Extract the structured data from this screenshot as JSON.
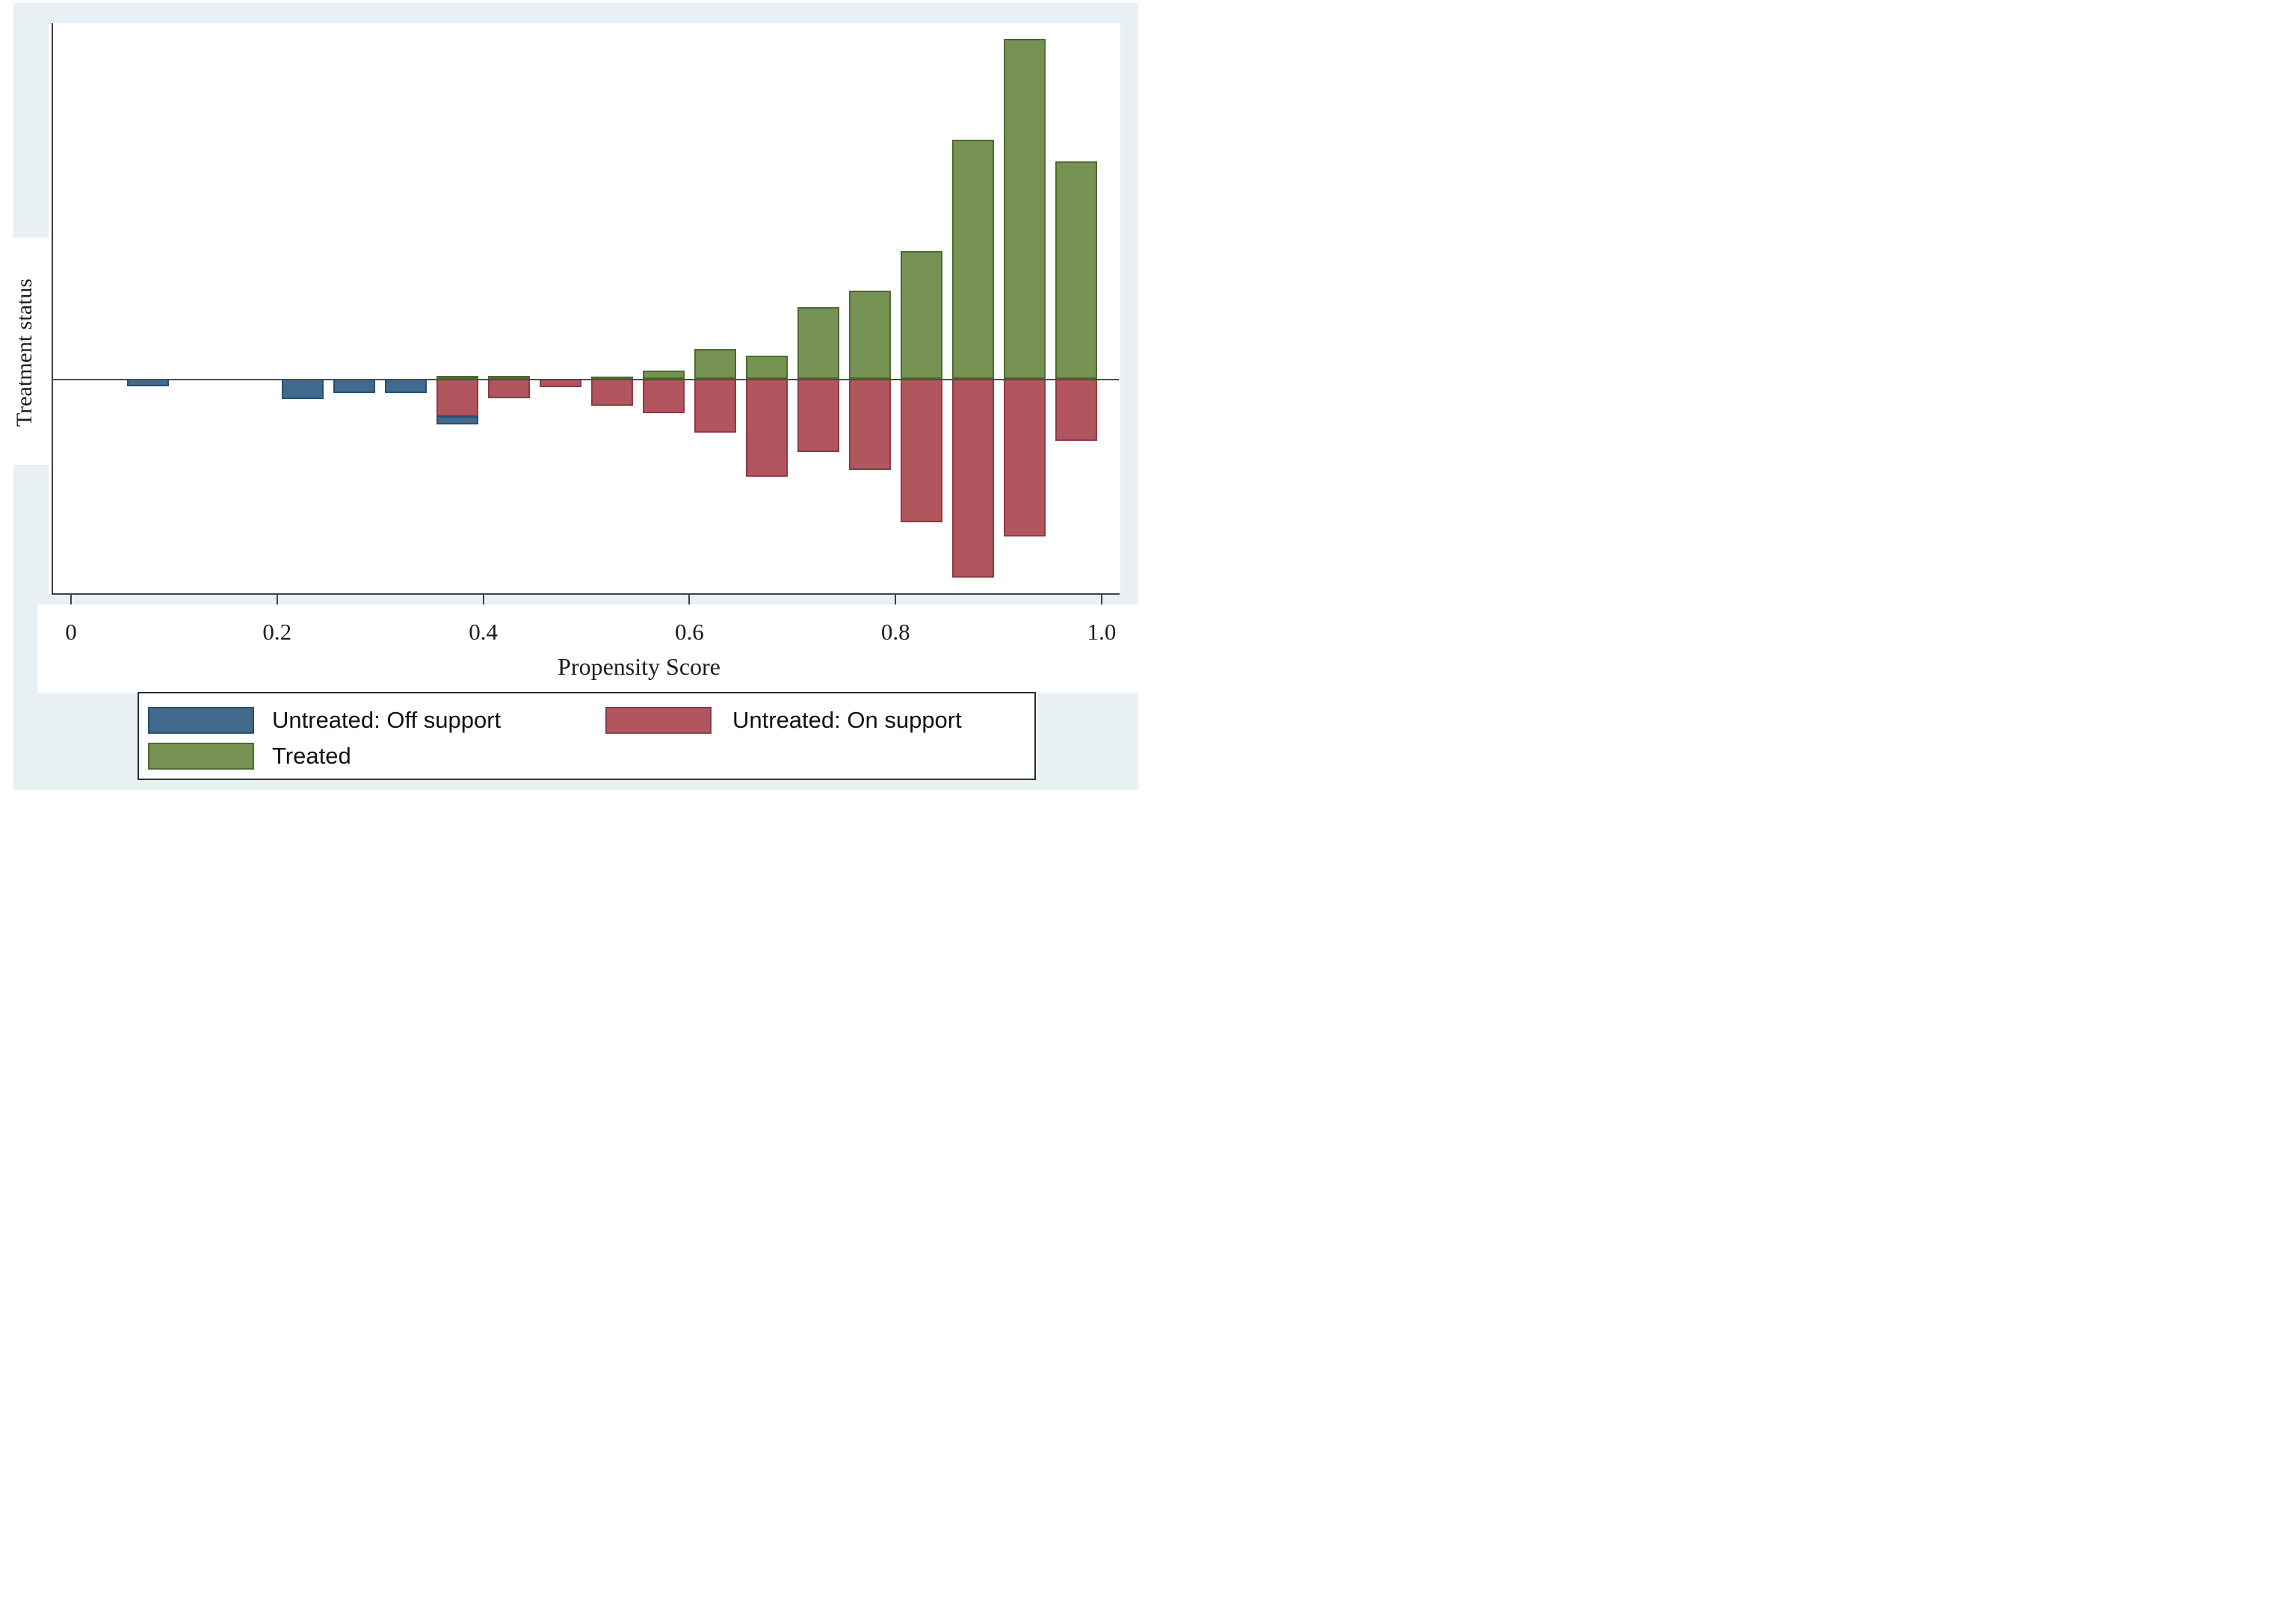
{
  "figure": {
    "colors": {
      "background_frame": "#e9f0f3",
      "plot_background": "#ffffff",
      "treated_fill": "#769253",
      "treated_edge": "#4e6a2f",
      "untreated_on_fill": "#b1555e",
      "untreated_on_edge": "#8e3a44",
      "untreated_off_fill": "#406a8e",
      "untreated_off_edge": "#294f6e",
      "axis_line": "#3f4245"
    }
  },
  "y_axis": {
    "title": "Treatment status"
  },
  "x_axis": {
    "title": "Propensity Score",
    "ticks": [
      {
        "label": "0",
        "value": 0.0
      },
      {
        "label": "0.2",
        "value": 0.2
      },
      {
        "label": "0.4",
        "value": 0.4
      },
      {
        "label": "0.6",
        "value": 0.6
      },
      {
        "label": "0.8",
        "value": 0.8
      },
      {
        "label": "1.0",
        "value": 1.0
      }
    ]
  },
  "legend": {
    "items": [
      {
        "label": "Untreated: Off support",
        "color_key": "untreated_off_fill",
        "edge_key": "untreated_off_edge"
      },
      {
        "label": "Untreated: On support",
        "color_key": "untreated_on_fill",
        "edge_key": "untreated_on_edge"
      },
      {
        "label": "Treated",
        "color_key": "treated_fill",
        "edge_key": "treated_edge"
      }
    ]
  },
  "chart_data": {
    "type": "bar",
    "subtype": "mirrored-histogram",
    "title": "",
    "xlabel": "Propensity Score",
    "ylabel": "Treatment status",
    "x_range": [
      0,
      1.0
    ],
    "bin_width": 0.05,
    "grid": false,
    "legend_position": "bottom",
    "units_note": "No numeric y scale shown; values are relative frequencies normalized so the tallest Treated bar = 1. Treated bars extend up from the zero line; Untreated bars extend down.",
    "series_names": [
      "Treated",
      "Untreated: On support",
      "Untreated: Off support"
    ],
    "bins": [
      {
        "center": 0.075,
        "treated": 0,
        "untreated_on": 0,
        "untreated_off": 0.022,
        "off_offset": 0
      },
      {
        "center": 0.225,
        "treated": 0,
        "untreated_on": 0,
        "untreated_off": 0.059,
        "off_offset": 0
      },
      {
        "center": 0.275,
        "treated": 0,
        "untreated_on": 0,
        "untreated_off": 0.042,
        "off_offset": 0
      },
      {
        "center": 0.325,
        "treated": 0,
        "untreated_on": 0,
        "untreated_off": 0.042,
        "off_offset": 0
      },
      {
        "center": 0.375,
        "treated": 0.009,
        "untreated_on": 0.11,
        "untreated_off": 0.024,
        "off_offset": 0.11
      },
      {
        "center": 0.425,
        "treated": 0.009,
        "untreated_on": 0.057,
        "untreated_off": 0,
        "off_offset": 0
      },
      {
        "center": 0.475,
        "treated": 0,
        "untreated_on": 0.024,
        "untreated_off": 0,
        "off_offset": 0
      },
      {
        "center": 0.525,
        "treated": 0.007,
        "untreated_on": 0.08,
        "untreated_off": 0,
        "off_offset": 0
      },
      {
        "center": 0.575,
        "treated": 0.024,
        "untreated_on": 0.101,
        "untreated_off": 0,
        "off_offset": 0
      },
      {
        "center": 0.625,
        "treated": 0.088,
        "untreated_on": 0.159,
        "untreated_off": 0,
        "off_offset": 0
      },
      {
        "center": 0.675,
        "treated": 0.068,
        "untreated_on": 0.289,
        "untreated_off": 0,
        "off_offset": 0
      },
      {
        "center": 0.725,
        "treated": 0.212,
        "untreated_on": 0.216,
        "untreated_off": 0,
        "off_offset": 0
      },
      {
        "center": 0.775,
        "treated": 0.259,
        "untreated_on": 0.269,
        "untreated_off": 0,
        "off_offset": 0
      },
      {
        "center": 0.825,
        "treated": 0.375,
        "untreated_on": 0.422,
        "untreated_off": 0,
        "off_offset": 0
      },
      {
        "center": 0.875,
        "treated": 0.703,
        "untreated_on": 0.585,
        "untreated_off": 0,
        "off_offset": 0
      },
      {
        "center": 0.925,
        "treated": 1.0,
        "untreated_on": 0.463,
        "untreated_off": 0,
        "off_offset": 0
      },
      {
        "center": 0.975,
        "treated": 0.64,
        "untreated_on": 0.182,
        "untreated_off": 0,
        "off_offset": 0
      }
    ]
  }
}
